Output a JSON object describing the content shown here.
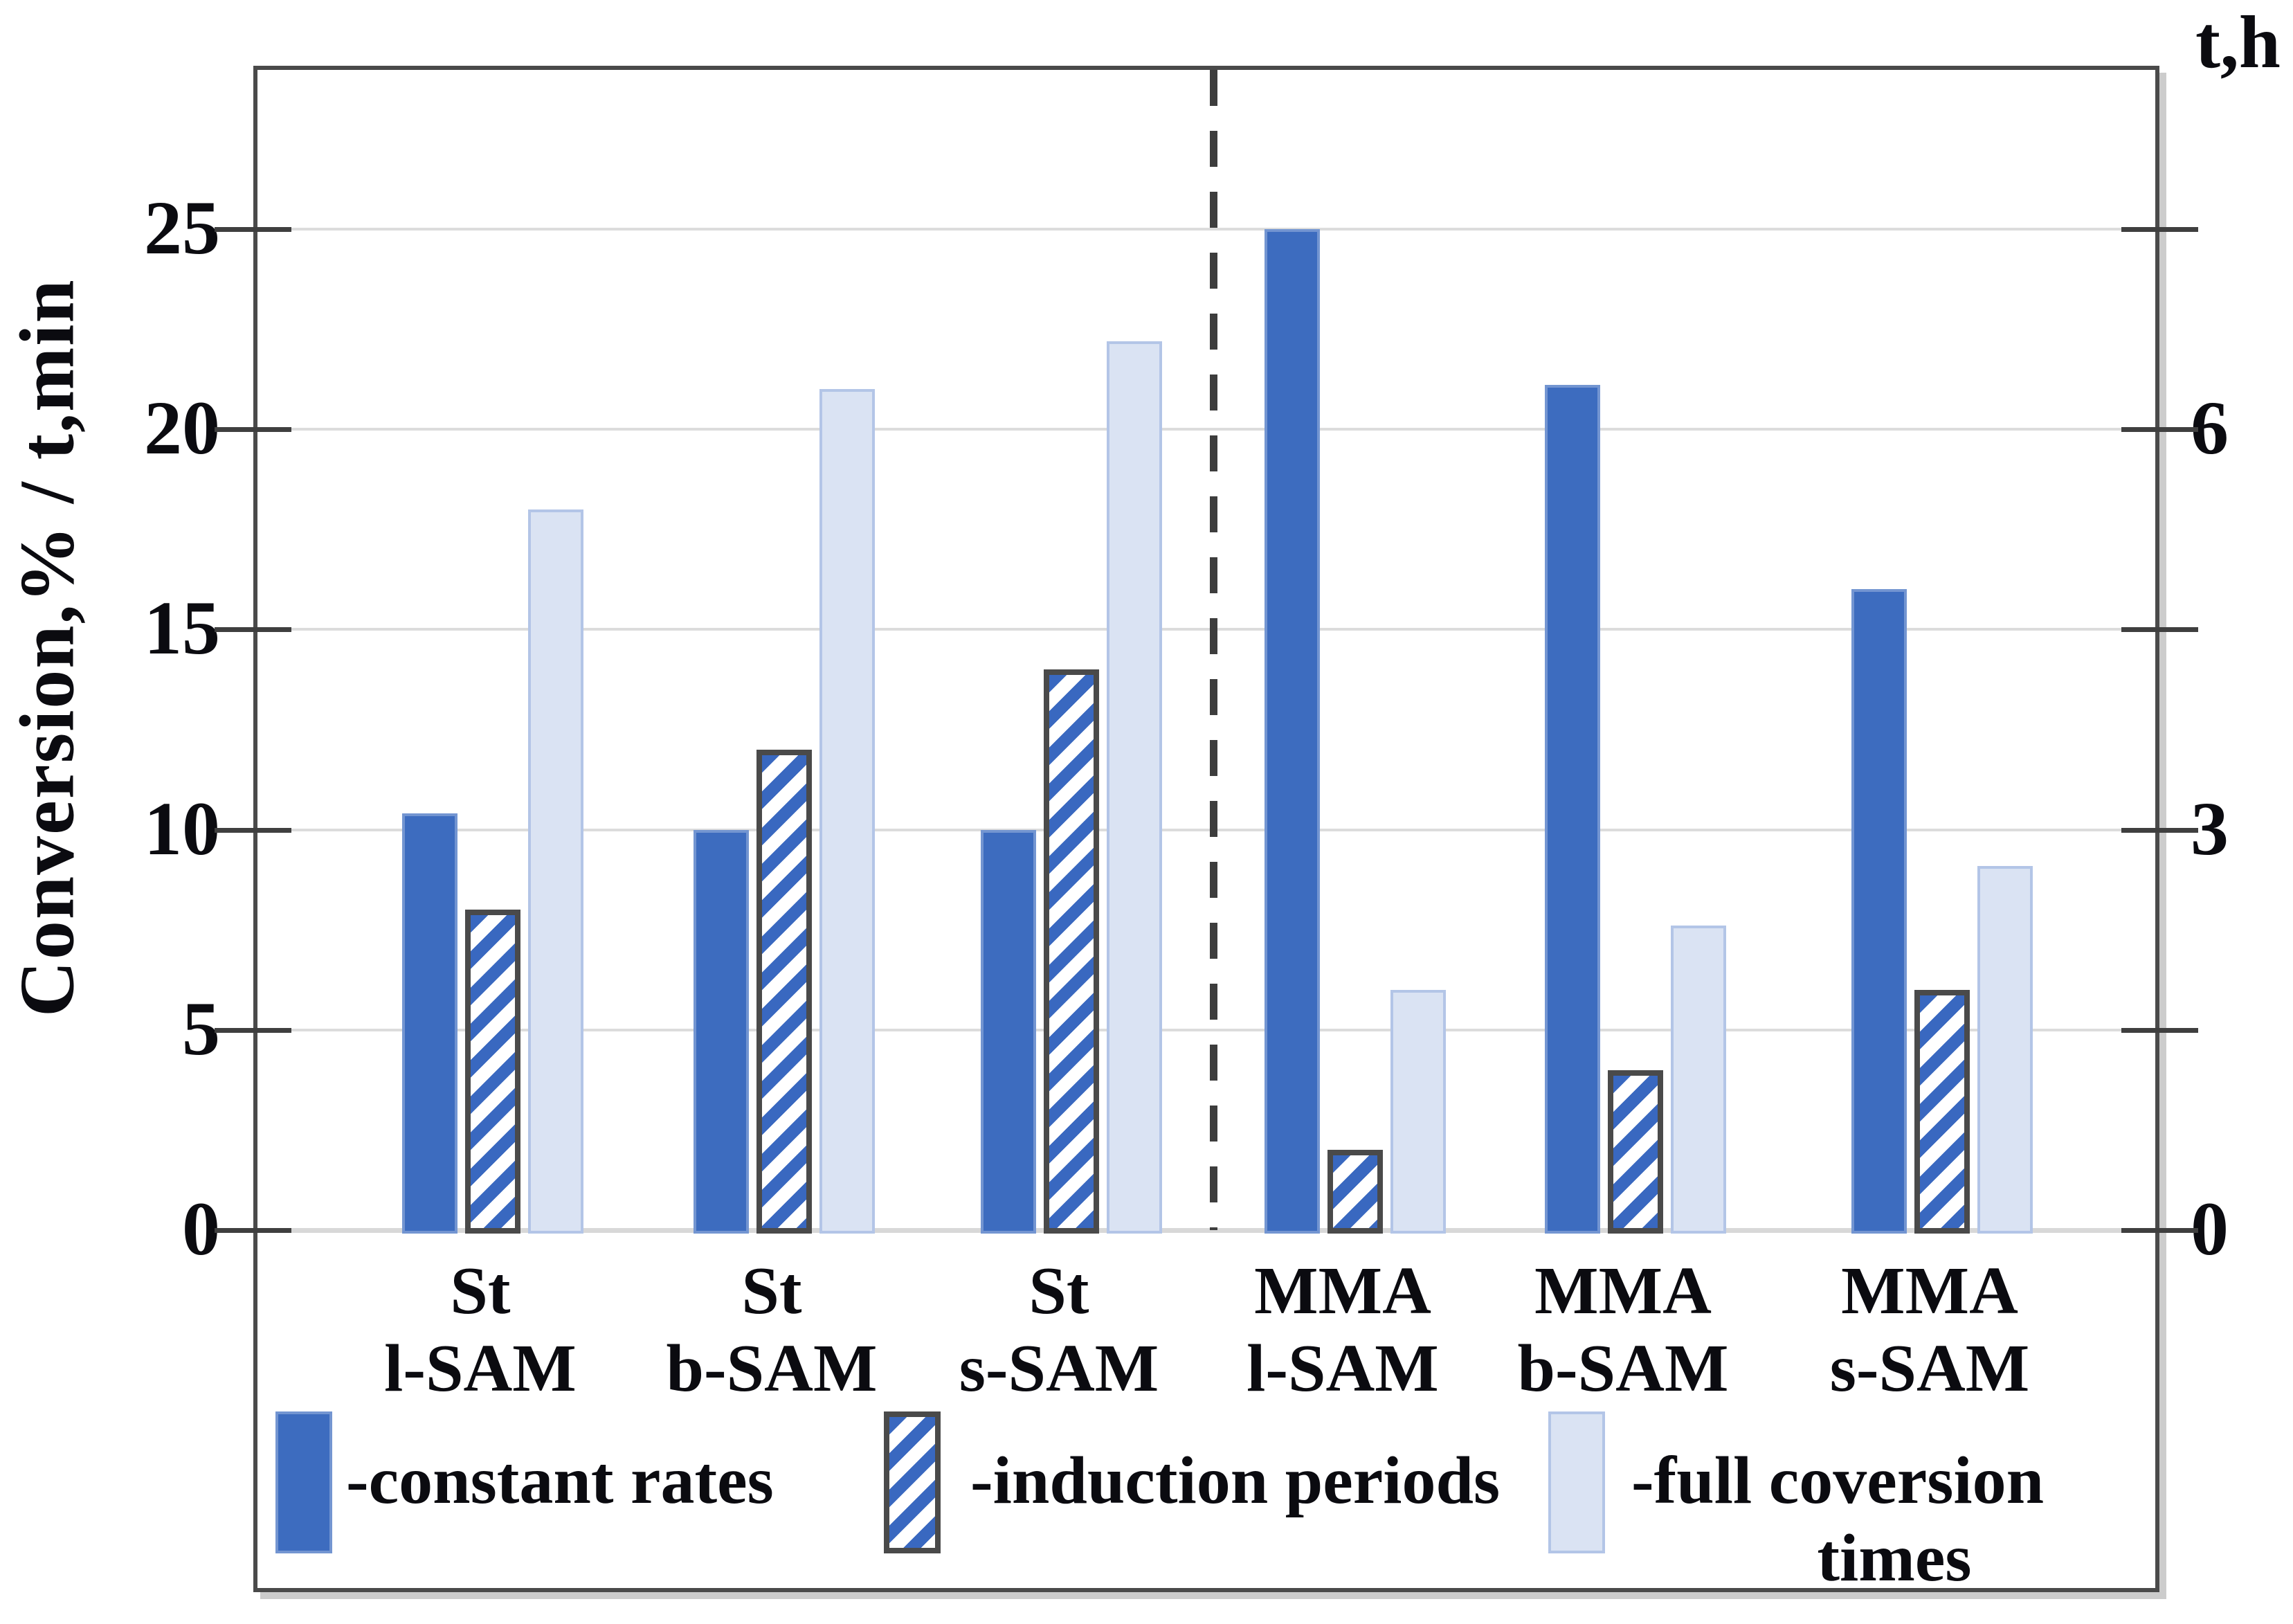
{
  "figure": {
    "background": "#ffffff",
    "type_note": "grouped bar chart with dual y-axes and dashed group divider"
  },
  "chart_data": {
    "type": "bar",
    "title": "",
    "categories": [
      {
        "line1": "St",
        "line2": "l-SAM"
      },
      {
        "line1": "St",
        "line2": "b-SAM"
      },
      {
        "line1": "St",
        "line2": "s-SAM"
      },
      {
        "line1": "MMA",
        "line2": "l-SAM"
      },
      {
        "line1": "MMA",
        "line2": "b-SAM"
      },
      {
        "line1": "MMA",
        "line2": "s-SAM"
      }
    ],
    "series": [
      {
        "name": "constant rates",
        "style": "solid",
        "axis": "left",
        "values": [
          10.4,
          10,
          10,
          25,
          21.1,
          16
        ]
      },
      {
        "name": "induction periods",
        "style": "hatched",
        "axis": "left",
        "values": [
          8,
          12,
          14,
          2,
          4,
          6
        ]
      },
      {
        "name": "full coversion times",
        "style": "light",
        "axis": "right",
        "values": [
          18,
          21,
          22.2,
          6,
          7.6,
          9.1
        ],
        "values_right_axis_hours": [
          5.4,
          6.3,
          6.7,
          1.8,
          2.3,
          2.7
        ]
      }
    ],
    "left_axis": {
      "label": "Conversion,% / t,min",
      "ticks": [
        0,
        5,
        10,
        15,
        20,
        25
      ],
      "range": [
        0,
        29
      ],
      "grid": true
    },
    "right_axis": {
      "label": "t,h",
      "ticks": [
        0,
        3,
        6
      ],
      "minor_ticks": [
        1.5,
        4.5,
        7.5
      ],
      "range": [
        0,
        8.7
      ],
      "scale_vs_left": 0.3
    },
    "divider_after_category_index": 2,
    "legend_position": "bottom"
  },
  "legend": {
    "items": [
      {
        "label": "-constant rates",
        "style": "solid"
      },
      {
        "label": "-induction periods",
        "style": "hatched"
      },
      {
        "label": "-full coversion times",
        "label_line1": "-full coversion",
        "label_line2": "times",
        "style": "light"
      }
    ]
  },
  "right_axis_tick_labels": [
    "6",
    "3",
    "0"
  ],
  "left_axis_tick_labels": [
    "25",
    "20",
    "15",
    "10",
    "5",
    "0"
  ],
  "colors": {
    "solid_bar": "#3d6cbf",
    "hatch_stripe": "#3968c0",
    "hatch_border": "#4a4a4a",
    "light_bar_fill": "#dae3f3",
    "light_bar_border": "#b3c5e7",
    "gridline": "#dcdcdc",
    "baseline": "#d8d8d8",
    "axis_line": "#3f3f3f",
    "box_border": "#4a4a4a",
    "box_shadow": "#cccccc",
    "dashed_divider": "#3d3d3d",
    "text": "#0b0b10"
  }
}
